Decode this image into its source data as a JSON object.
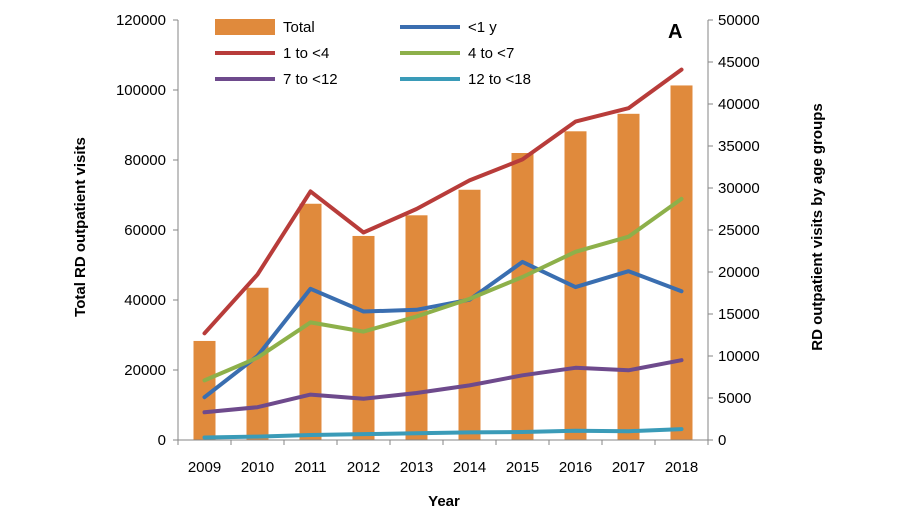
{
  "chart_data": {
    "type": "bar+line",
    "panel_label": "A",
    "xlabel": "Year",
    "ylabel_left": "Total RD outpatient visits",
    "ylabel_right": "RD outpatient visits by age groups",
    "ylim_left": [
      0,
      120000
    ],
    "ylim_right": [
      0,
      50000
    ],
    "yticks_left": [
      "0",
      "20000",
      "40000",
      "60000",
      "80000",
      "100000",
      "120000"
    ],
    "yticks_right": [
      "0",
      "5000",
      "10000",
      "15000",
      "20000",
      "25000",
      "30000",
      "35000",
      "40000",
      "45000",
      "50000"
    ],
    "grid": false,
    "legend_placement": "top",
    "categories": [
      "2009",
      "2010",
      "2011",
      "2012",
      "2013",
      "2014",
      "2015",
      "2016",
      "2017",
      "2018"
    ],
    "bar_series": {
      "name": "Total",
      "axis": "left",
      "color": "#E08A3C",
      "values": [
        28300,
        43500,
        67500,
        58300,
        64200,
        71500,
        82000,
        88200,
        93200,
        101300
      ]
    },
    "line_series": [
      {
        "name": "<1 y",
        "axis": "right",
        "color": "#3A6EB0",
        "values": [
          5100,
          10000,
          18000,
          15300,
          15500,
          16700,
          21200,
          18200,
          20100,
          17700
        ]
      },
      {
        "name": "1 to <4",
        "axis": "right",
        "color": "#B83C3A",
        "values": [
          12700,
          19700,
          29600,
          24700,
          27500,
          30900,
          33400,
          37900,
          39500,
          44100
        ]
      },
      {
        "name": "4 to <7",
        "axis": "right",
        "color": "#8DB04A",
        "values": [
          7100,
          9800,
          14000,
          12900,
          14700,
          16800,
          19400,
          22400,
          24200,
          28700
        ]
      },
      {
        "name": "7 to <12",
        "axis": "right",
        "color": "#6E4A8C",
        "values": [
          3300,
          3900,
          5400,
          4900,
          5600,
          6500,
          7700,
          8600,
          8300,
          9500
        ]
      },
      {
        "name": "12 to <18",
        "axis": "right",
        "color": "#3A9BB8",
        "values": [
          300,
          400,
          600,
          700,
          800,
          900,
          950,
          1100,
          1050,
          1300
        ]
      }
    ]
  }
}
